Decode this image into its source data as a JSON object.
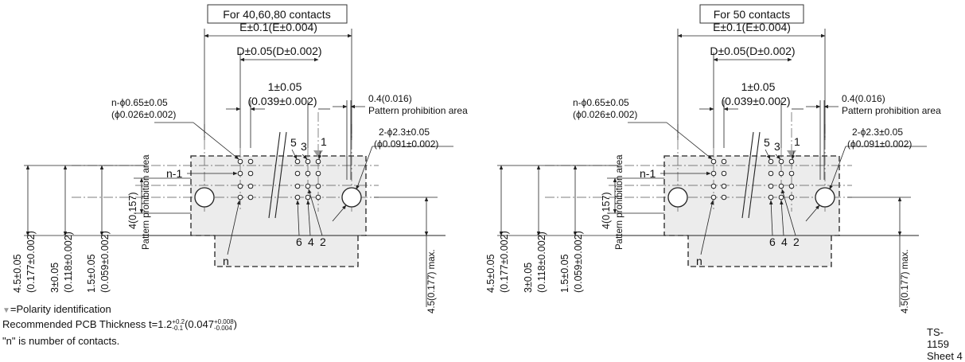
{
  "views": [
    {
      "id": "left",
      "title": "For 40,60,80 contacts",
      "dim_E": "E±0.1(E±0.004)",
      "dim_D": "D±0.05(D±0.002)",
      "pitch_mm": "1±0.05",
      "pitch_in": "(0.039±0.002)",
      "pin_hole_mm": "n-ϕ0.65±0.05",
      "pin_hole_in": "(ϕ0.026±0.002)",
      "margin_mm": "0.4(0.016)",
      "margin_label": "Pattern prohibition area",
      "mount_hole_mm": "2-ϕ2.3±0.05",
      "mount_hole_in": "(ϕ0.091±0.002)",
      "pin_labels": {
        "n1": "n-1",
        "n": "n",
        "p1": "1",
        "p2": "2",
        "p3": "3",
        "p4": "4",
        "p5": "5",
        "p6": "6"
      },
      "vdim_1": "4.5±0.05",
      "vdim_1_in": "(0.177±0.002)",
      "vdim_2": "3±0.05",
      "vdim_2_in": "(0.118±0.002)",
      "vdim_3": "1.5±0.05",
      "vdim_3_in": "(0.059±0.002)",
      "vdim_4": "4(0.157)",
      "vdim_4_label": "Pattern prohibition area",
      "vdim_max": "4.5(0.177) max."
    },
    {
      "id": "right",
      "title": "For 50 contacts",
      "dim_E": "E±0.1(E±0.004)",
      "dim_D": "D±0.05(D±0.002)",
      "pitch_mm": "1±0.05",
      "pitch_in": "(0.039±0.002)",
      "pin_hole_mm": "n-ϕ0.65±0.05",
      "pin_hole_in": "(ϕ0.026±0.002)",
      "margin_mm": "0.4(0.016)",
      "margin_label": "Pattern prohibition area",
      "mount_hole_mm": "2-ϕ2.3±0.05",
      "mount_hole_in": "(ϕ0.091±0.002)",
      "pin_labels": {
        "n1": "n-1",
        "n": "n",
        "p1": "1",
        "p2": "2",
        "p3": "3",
        "p4": "4",
        "p5": "5",
        "p6": "6"
      },
      "vdim_1": "4.5±0.05",
      "vdim_1_in": "(0.177±0.002)",
      "vdim_2": "3±0.05",
      "vdim_2_in": "(0.118±0.002)",
      "vdim_3": "1.5±0.05",
      "vdim_3_in": "(0.059±0.002)",
      "vdim_4": "4(0.157)",
      "vdim_4_label": "Pattern prohibition area",
      "vdim_max": "4.5(0.177) max."
    }
  ],
  "notes": {
    "polarity_symbol": "▼",
    "polarity": "=Polarity identification",
    "thickness_prefix": "Recommended PCB Thickness  t=1.2",
    "thickness_tol_mm_upper": "+0.2",
    "thickness_tol_mm_lower": "-0.1",
    "thickness_in": "(0.047",
    "thickness_tol_in_upper": "+0.008",
    "thickness_tol_in_lower": "-0.004",
    "thickness_close": ")",
    "contacts_note": "\"n\" is number of contacts."
  },
  "doc_ref": {
    "number": "TS-1159",
    "sheet": "Sheet 4"
  },
  "colors": {
    "prohibition_area_fill": "#ececec",
    "polarity_marker": "#9a9a9a",
    "ink": "#222222"
  }
}
